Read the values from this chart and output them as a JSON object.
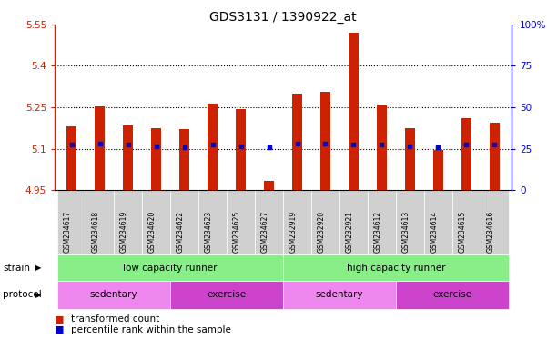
{
  "title": "GDS3131 / 1390922_at",
  "samples": [
    "GSM234617",
    "GSM234618",
    "GSM234619",
    "GSM234620",
    "GSM234622",
    "GSM234623",
    "GSM234625",
    "GSM234627",
    "GSM232919",
    "GSM232920",
    "GSM232921",
    "GSM234612",
    "GSM234613",
    "GSM234614",
    "GSM234615",
    "GSM234616"
  ],
  "bar_values": [
    5.18,
    5.255,
    5.185,
    5.175,
    5.17,
    5.265,
    5.245,
    4.985,
    5.3,
    5.305,
    5.52,
    5.26,
    5.175,
    5.095,
    5.21,
    5.195
  ],
  "dot_values": [
    5.115,
    5.12,
    5.115,
    5.11,
    5.105,
    5.115,
    5.11,
    5.105,
    5.12,
    5.12,
    5.115,
    5.115,
    5.11,
    5.105,
    5.115,
    5.115
  ],
  "ylim": [
    4.95,
    5.55
  ],
  "yticks": [
    4.95,
    5.1,
    5.25,
    5.4,
    5.55
  ],
  "ytick_labels": [
    "4.95",
    "5.1",
    "5.25",
    "5.4",
    "5.55"
  ],
  "right_yticks": [
    0,
    25,
    50,
    75,
    100
  ],
  "right_ytick_labels": [
    "0",
    "25",
    "50",
    "75",
    "100%"
  ],
  "bar_color": "#cc2200",
  "dot_color": "#0000cc",
  "bar_bottom": 4.95,
  "grid_lines": [
    5.1,
    5.25,
    5.4
  ],
  "strain_labels": [
    "low capacity runner",
    "high capacity runner"
  ],
  "strain_ranges": [
    [
      0,
      7
    ],
    [
      8,
      15
    ]
  ],
  "strain_color": "#88ee88",
  "protocol_groups": [
    {
      "label": "sedentary",
      "range": [
        0,
        3
      ],
      "color": "#ee88ee"
    },
    {
      "label": "exercise",
      "range": [
        4,
        7
      ],
      "color": "#cc44cc"
    },
    {
      "label": "sedentary",
      "range": [
        8,
        11
      ],
      "color": "#ee88ee"
    },
    {
      "label": "exercise",
      "range": [
        12,
        15
      ],
      "color": "#cc44cc"
    }
  ],
  "legend_items": [
    {
      "color": "#cc2200",
      "label": "transformed count"
    },
    {
      "color": "#0000cc",
      "label": "percentile rank within the sample"
    }
  ],
  "bar_width": 0.35
}
